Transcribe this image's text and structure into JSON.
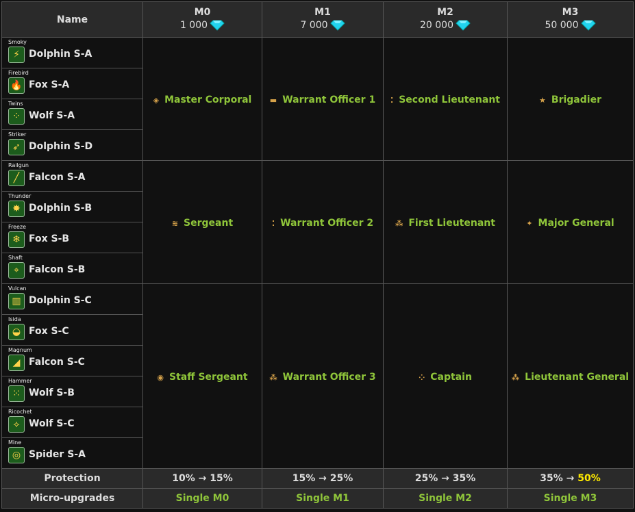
{
  "header": {
    "name": "Name",
    "columns": [
      {
        "mk": "M0",
        "price": "1 000"
      },
      {
        "mk": "M1",
        "price": "7 000"
      },
      {
        "mk": "M2",
        "price": "20 000"
      },
      {
        "mk": "M3",
        "price": "50 000"
      }
    ]
  },
  "rows": [
    {
      "type": "Smoky",
      "name": "Dolphin S-A",
      "icon": "⚡"
    },
    {
      "type": "Firebird",
      "name": "Fox S-A",
      "icon": "🔥"
    },
    {
      "type": "Twins",
      "name": "Wolf S-A",
      "icon": "⁘"
    },
    {
      "type": "Striker",
      "name": "Dolphin S-D",
      "icon": "➶"
    },
    {
      "type": "Railgun",
      "name": "Falcon S-A",
      "icon": "╱"
    },
    {
      "type": "Thunder",
      "name": "Dolphin S-B",
      "icon": "✸"
    },
    {
      "type": "Freeze",
      "name": "Fox S-B",
      "icon": "❄"
    },
    {
      "type": "Shaft",
      "name": "Falcon S-B",
      "icon": "⌖"
    },
    {
      "type": "Vulcan",
      "name": "Dolphin S-C",
      "icon": "▥"
    },
    {
      "type": "Isida",
      "name": "Fox S-C",
      "icon": "◒"
    },
    {
      "type": "Magnum",
      "name": "Falcon S-C",
      "icon": "◢"
    },
    {
      "type": "Hammer",
      "name": "Wolf S-B",
      "icon": "⁙"
    },
    {
      "type": "Ricochet",
      "name": "Wolf S-C",
      "icon": "⟡"
    },
    {
      "type": "Mine",
      "name": "Spider S-A",
      "icon": "◎"
    }
  ],
  "ranks": [
    [
      "Master Corporal",
      "Warrant Officer 1",
      "Second Lieutenant",
      "Brigadier"
    ],
    [
      "Sergeant",
      "Warrant Officer 2",
      "First Lieutenant",
      "Major General"
    ],
    [
      "Staff Sergeant",
      "Warrant Officer 3",
      "Captain",
      "Lieutenant General"
    ]
  ],
  "rank_icons": [
    [
      "chevron-badge-icon",
      "bar-badge-icon",
      "two-pip-icon",
      "star-icon"
    ],
    [
      "double-chevron-icon",
      "double-bar-icon",
      "three-pip-icon",
      "star-pip-icon"
    ],
    [
      "triple-chevron-icon",
      "triangle-pip-icon",
      "four-pip-icon",
      "triangle-pip-icon"
    ]
  ],
  "footer": {
    "protection_label": "Protection",
    "protection": [
      "10% → 15%",
      "15% → 25%",
      "25% → 35%"
    ],
    "protection_m3_from": "35% → ",
    "protection_m3_to": "50%",
    "microupgrades_label": "Micro-upgrades",
    "microupgrades": [
      "Single M0",
      "Single M1",
      "Single M2",
      "Single M3"
    ]
  },
  "colors": {
    "rank_text": "#8fc53a",
    "highlight": "#ffea00",
    "gem": "#22d3ee"
  }
}
